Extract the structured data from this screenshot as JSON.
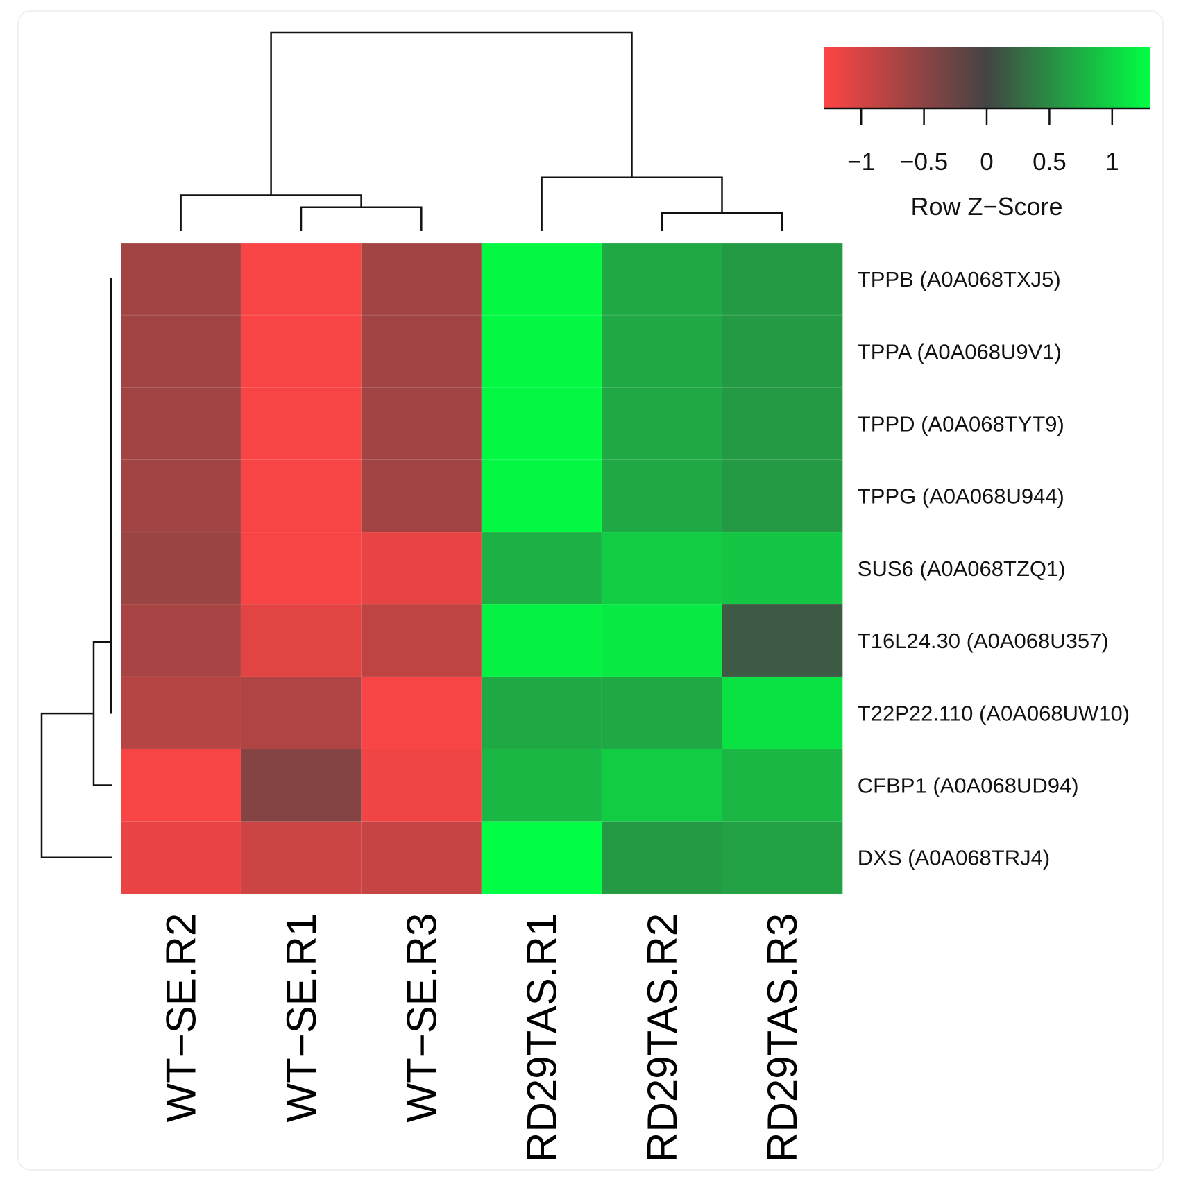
{
  "chart_data": {
    "type": "heatmap",
    "title": "",
    "columns": [
      "WT−SE.R2",
      "WT−SE.R1",
      "WT−SE.R3",
      "RD29TAS.R1",
      "RD29TAS.R2",
      "RD29TAS.R3"
    ],
    "rows": [
      "TPPB (A0A068TXJ5)",
      "TPPA (A0A068U9V1)",
      "TPPD (A0A068TYT9)",
      "TPPG (A0A068U944)",
      "SUS6 (A0A068TZQ1)",
      "T16L24.30 (A0A068U357)",
      "T22P22.110 (A0A068UW10)",
      "CFBP1 (A0A068UD94)",
      "DXS (A0A068TRJ4)"
    ],
    "values": [
      [
        -0.65,
        -1.25,
        -0.65,
        1.25,
        0.7,
        0.6
      ],
      [
        -0.65,
        -1.25,
        -0.65,
        1.25,
        0.7,
        0.6
      ],
      [
        -0.65,
        -1.25,
        -0.65,
        1.25,
        0.7,
        0.6
      ],
      [
        -0.65,
        -1.25,
        -0.65,
        1.25,
        0.7,
        0.6
      ],
      [
        -0.6,
        -1.25,
        -1.15,
        0.75,
        0.95,
        0.9
      ],
      [
        -0.7,
        -1.1,
        -0.85,
        1.2,
        1.15,
        0.15
      ],
      [
        -0.8,
        -0.75,
        -1.25,
        0.7,
        0.7,
        1.1
      ],
      [
        -1.25,
        -0.45,
        -1.2,
        0.8,
        0.95,
        0.8
      ],
      [
        -1.15,
        -0.95,
        -0.9,
        1.3,
        0.6,
        0.65
      ]
    ],
    "color_key": {
      "title": "Row Z−Score",
      "range": [
        -1.3,
        1.3
      ],
      "ticks": [
        -1,
        -0.5,
        0,
        0.5,
        1
      ],
      "tick_labels": [
        "−1",
        "−0.5",
        "0",
        "0.5",
        "1"
      ],
      "colors": [
        "#ff4444",
        "#444444",
        "#00ff44"
      ]
    },
    "column_dendrogram": {
      "order": [
        "WT−SE.R2",
        "WT−SE.R1",
        "WT−SE.R3",
        "RD29TAS.R1",
        "RD29TAS.R2",
        "RD29TAS.R3"
      ],
      "merges": [
        [
          1,
          2,
          0.12
        ],
        [
          0,
          "m0",
          0.18
        ],
        [
          4,
          5,
          0.09
        ],
        [
          3,
          "m2",
          0.27
        ],
        [
          "m1",
          "m3",
          1.0
        ]
      ]
    },
    "row_dendrogram": {
      "merges": [
        [
          0,
          1,
          0.0
        ],
        [
          "m0",
          2,
          0.0
        ],
        [
          "m1",
          3,
          0.0
        ],
        [
          "m2",
          4,
          0.0
        ],
        [
          "m3",
          5,
          0.0
        ],
        [
          "m4",
          6,
          0.0
        ],
        [
          "m5",
          7,
          0.25
        ],
        [
          "m6",
          8,
          1.0
        ]
      ]
    }
  }
}
